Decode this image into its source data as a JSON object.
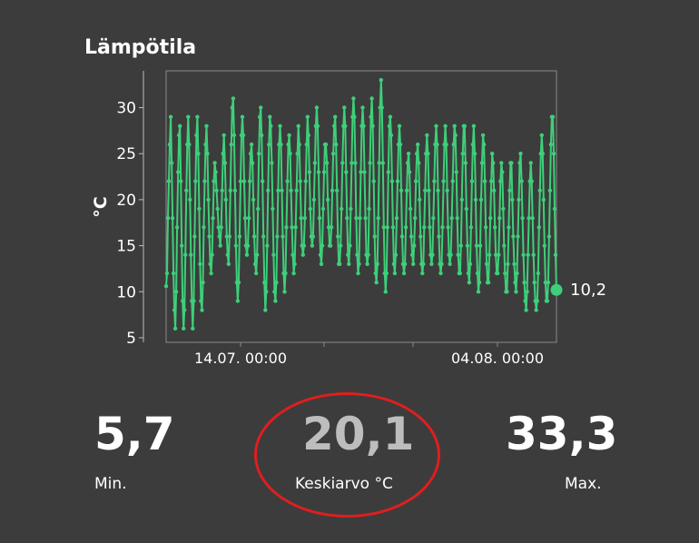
{
  "card": {
    "title": "Lämpötila"
  },
  "chart_data": {
    "type": "line",
    "ylabel": "°C",
    "ylim": [
      4.5,
      34
    ],
    "yticks": [
      5,
      10,
      15,
      20,
      25,
      30
    ],
    "xlabels": [
      "14.07. 00:00",
      "04.08. 00:00"
    ],
    "series": [
      {
        "color": "#3ecf7a",
        "values": [
          10.6,
          12,
          18,
          22,
          26,
          29,
          24,
          18,
          12,
          8,
          6,
          10,
          17,
          23,
          27,
          28,
          22,
          15,
          9,
          6,
          8,
          14,
          21,
          26,
          29,
          26,
          20,
          14,
          9,
          6,
          9,
          16,
          22,
          27,
          29,
          25,
          19,
          13,
          9,
          8,
          11,
          17,
          22,
          26,
          28,
          25,
          20,
          16,
          13,
          12,
          14,
          18,
          22,
          24,
          23,
          21,
          19,
          17,
          16,
          15,
          17,
          21,
          25,
          27,
          24,
          20,
          16,
          14,
          13,
          16,
          21,
          26,
          30,
          31,
          27,
          21,
          15,
          11,
          9,
          11,
          16,
          22,
          27,
          29,
          27,
          22,
          18,
          15,
          14,
          15,
          18,
          22,
          25,
          26,
          24,
          20,
          16,
          13,
          12,
          14,
          19,
          25,
          29,
          30,
          27,
          22,
          16,
          11,
          8,
          10,
          15,
          21,
          26,
          29,
          28,
          24,
          19,
          14,
          10,
          9,
          11,
          16,
          21,
          26,
          28,
          26,
          21,
          16,
          12,
          10,
          12,
          17,
          22,
          26,
          27,
          25,
          21,
          17,
          14,
          12,
          13,
          17,
          21,
          25,
          28,
          26,
          22,
          18,
          15,
          14,
          15,
          18,
          22,
          26,
          29,
          27,
          23,
          19,
          16,
          15,
          16,
          20,
          24,
          28,
          30,
          28,
          23,
          18,
          14,
          13,
          15,
          19,
          23,
          26,
          26,
          24,
          20,
          17,
          15,
          15,
          17,
          21,
          25,
          28,
          29,
          26,
          21,
          16,
          13,
          13,
          15,
          19,
          24,
          28,
          30,
          28,
          23,
          18,
          14,
          13,
          15,
          19,
          24,
          29,
          31,
          29,
          24,
          18,
          14,
          12,
          13,
          18,
          23,
          28,
          30,
          28,
          23,
          18,
          14,
          13,
          14,
          19,
          24,
          29,
          31,
          28,
          22,
          16,
          12,
          11,
          13,
          18,
          24,
          30,
          33,
          30,
          24,
          17,
          12,
          10,
          12,
          17,
          23,
          28,
          29,
          27,
          22,
          17,
          13,
          12,
          14,
          18,
          22,
          26,
          28,
          26,
          21,
          16,
          13,
          12,
          13,
          17,
          21,
          24,
          25,
          23,
          19,
          16,
          14,
          13,
          15,
          18,
          22,
          25,
          26,
          24,
          20,
          16,
          13,
          12,
          13,
          17,
          21,
          25,
          27,
          25,
          21,
          17,
          14,
          13,
          14,
          18,
          22,
          26,
          28,
          26,
          21,
          16,
          13,
          12,
          13,
          17,
          22,
          26,
          28,
          26,
          21,
          17,
          14,
          13,
          14,
          18,
          22,
          26,
          28,
          27,
          23,
          18,
          14,
          12,
          12,
          15,
          20,
          25,
          28,
          28,
          24,
          19,
          15,
          12,
          11,
          13,
          17,
          22,
          26,
          28,
          25,
          20,
          15,
          12,
          10,
          11,
          15,
          20,
          24,
          27,
          26,
          22,
          17,
          13,
          11,
          11,
          14,
          18,
          22,
          25,
          24,
          21,
          17,
          14,
          12,
          12,
          14,
          18,
          22,
          24,
          23,
          19,
          15,
          12,
          10,
          10,
          13,
          17,
          21,
          24,
          24,
          20,
          16,
          13,
          11,
          10,
          12,
          16,
          20,
          24,
          25,
          22,
          18,
          14,
          11,
          9,
          8,
          10,
          14,
          18,
          22,
          24,
          22,
          18,
          14,
          11,
          9,
          8,
          9,
          12,
          17,
          21,
          25,
          27,
          25,
          20,
          15,
          11,
          9,
          9,
          11,
          16,
          21,
          26,
          29,
          29,
          25,
          19,
          14,
          10.2
        ]
      }
    ],
    "last_value_label": "10,2"
  },
  "stats": {
    "min_value": "5,7",
    "min_label": "Min.",
    "avg_value": "20,1",
    "avg_label": "Keskiarvo °C",
    "max_value": "33,3",
    "max_label": "Max."
  }
}
